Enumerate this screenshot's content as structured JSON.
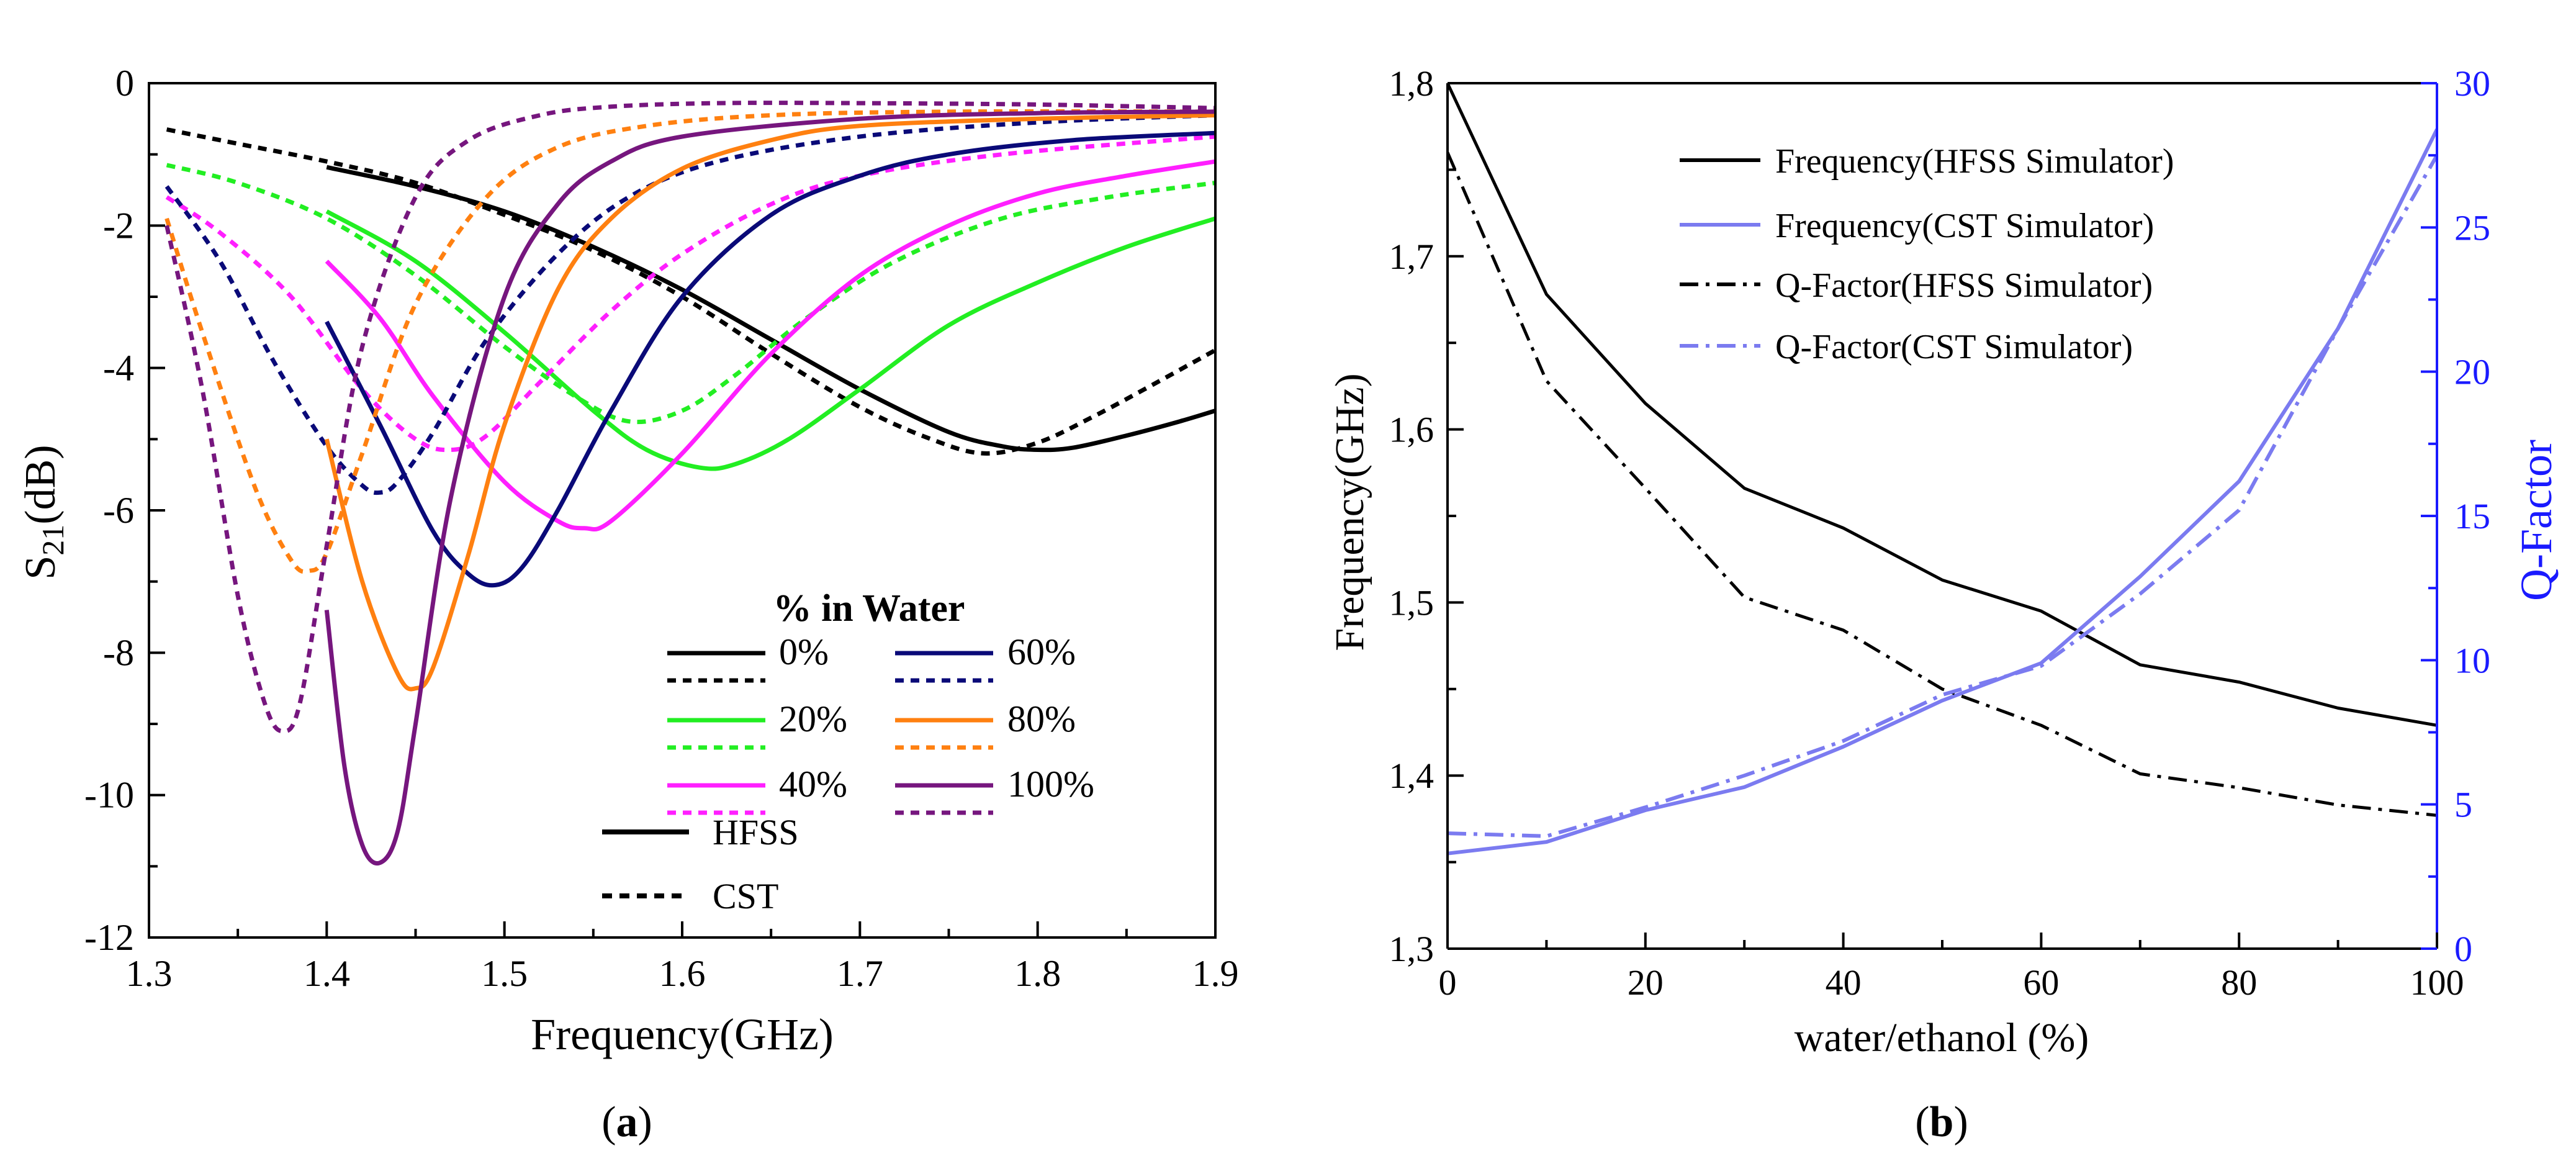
{
  "chart_data": [
    {
      "type": "line",
      "panel": "(a)",
      "panel_letter": "a",
      "xlabel": "Frequency(GHz)",
      "ylabel_main": "S",
      "ylabel_sub": "21",
      "ylabel_unit": "(dB)",
      "xlim": [
        1.3,
        1.9
      ],
      "ylim": [
        -12,
        0
      ],
      "x_ticks": [
        "1.3",
        "1.4",
        "1.5",
        "1.6",
        "1.7",
        "1.8",
        "1.9"
      ],
      "y_ticks": [
        "0",
        "-2",
        "-4",
        "-6",
        "-8",
        "-10",
        "-12"
      ],
      "legend_title": "% in Water",
      "legend_style_labels": [
        "HFSS",
        "CST"
      ],
      "series": [
        {
          "name": "0%",
          "sim": "HFSS",
          "color": "#000000",
          "x": [
            1.4,
            1.45,
            1.5,
            1.55,
            1.6,
            1.65,
            1.7,
            1.75,
            1.78,
            1.8,
            1.82,
            1.85,
            1.88,
            1.9
          ],
          "y": [
            -1.18,
            -1.45,
            -1.8,
            -2.3,
            -2.9,
            -3.6,
            -4.3,
            -4.9,
            -5.1,
            -5.15,
            -5.12,
            -4.95,
            -4.75,
            -4.6
          ]
        },
        {
          "name": "0%",
          "sim": "CST",
          "color": "#000000",
          "x": [
            1.31,
            1.35,
            1.4,
            1.45,
            1.5,
            1.55,
            1.6,
            1.65,
            1.7,
            1.74,
            1.77,
            1.8,
            1.83,
            1.86,
            1.9
          ],
          "y": [
            -0.65,
            -0.85,
            -1.1,
            -1.4,
            -1.85,
            -2.35,
            -3.0,
            -3.8,
            -4.55,
            -5.0,
            -5.2,
            -5.05,
            -4.7,
            -4.3,
            -3.75
          ]
        },
        {
          "name": "20%",
          "sim": "HFSS",
          "color": "#22ee22",
          "x": [
            1.4,
            1.45,
            1.5,
            1.55,
            1.58,
            1.61,
            1.63,
            1.66,
            1.7,
            1.75,
            1.8,
            1.85,
            1.9
          ],
          "y": [
            -1.8,
            -2.5,
            -3.5,
            -4.6,
            -5.15,
            -5.4,
            -5.35,
            -5.0,
            -4.3,
            -3.4,
            -2.8,
            -2.3,
            -1.9
          ]
        },
        {
          "name": "20%",
          "sim": "CST",
          "color": "#22ee22",
          "x": [
            1.31,
            1.35,
            1.4,
            1.45,
            1.5,
            1.54,
            1.57,
            1.6,
            1.63,
            1.67,
            1.72,
            1.78,
            1.84,
            1.9
          ],
          "y": [
            -1.15,
            -1.4,
            -1.9,
            -2.7,
            -3.7,
            -4.4,
            -4.75,
            -4.6,
            -4.1,
            -3.3,
            -2.5,
            -1.9,
            -1.6,
            -1.4
          ]
        },
        {
          "name": "40%",
          "sim": "HFSS",
          "color": "#ff1fff",
          "x": [
            1.4,
            1.43,
            1.46,
            1.5,
            1.53,
            1.545,
            1.56,
            1.6,
            1.65,
            1.7,
            1.75,
            1.8,
            1.85,
            1.9
          ],
          "y": [
            -2.5,
            -3.3,
            -4.4,
            -5.6,
            -6.15,
            -6.25,
            -6.15,
            -5.2,
            -3.8,
            -2.7,
            -2.0,
            -1.55,
            -1.3,
            -1.1
          ]
        },
        {
          "name": "40%",
          "sim": "CST",
          "color": "#ff1fff",
          "x": [
            1.31,
            1.34,
            1.38,
            1.42,
            1.45,
            1.47,
            1.49,
            1.52,
            1.56,
            1.6,
            1.65,
            1.7,
            1.78,
            1.9
          ],
          "y": [
            -1.6,
            -2.1,
            -3.0,
            -4.3,
            -5.0,
            -5.15,
            -4.95,
            -4.2,
            -3.2,
            -2.4,
            -1.7,
            -1.3,
            -1.0,
            -0.75
          ]
        },
        {
          "name": "60%",
          "sim": "HFSS",
          "color": "#0a0a78",
          "x": [
            1.4,
            1.43,
            1.46,
            1.48,
            1.495,
            1.51,
            1.53,
            1.56,
            1.6,
            1.65,
            1.7,
            1.75,
            1.82,
            1.9
          ],
          "y": [
            -3.35,
            -4.8,
            -6.3,
            -6.9,
            -7.05,
            -6.8,
            -6.0,
            -4.6,
            -3.0,
            -1.85,
            -1.3,
            -1.0,
            -0.8,
            -0.7
          ]
        },
        {
          "name": "60%",
          "sim": "CST",
          "color": "#0a0a78",
          "x": [
            1.31,
            1.34,
            1.37,
            1.4,
            1.42,
            1.43,
            1.44,
            1.46,
            1.49,
            1.53,
            1.57,
            1.62,
            1.7,
            1.8,
            1.9
          ],
          "y": [
            -1.45,
            -2.5,
            -3.9,
            -5.1,
            -5.65,
            -5.75,
            -5.6,
            -4.9,
            -3.6,
            -2.4,
            -1.6,
            -1.1,
            -0.75,
            -0.55,
            -0.45
          ]
        },
        {
          "name": "80%",
          "sim": "HFSS",
          "color": "#ff8010",
          "x": [
            1.4,
            1.42,
            1.44,
            1.45,
            1.46,
            1.48,
            1.5,
            1.53,
            1.56,
            1.6,
            1.65,
            1.7,
            1.8,
            1.9
          ],
          "y": [
            -5.0,
            -7.0,
            -8.3,
            -8.5,
            -8.2,
            -6.6,
            -4.8,
            -2.9,
            -1.9,
            -1.2,
            -0.8,
            -0.6,
            -0.5,
            -0.45
          ]
        },
        {
          "name": "80%",
          "sim": "CST",
          "color": "#ff8010",
          "x": [
            1.31,
            1.33,
            1.36,
            1.38,
            1.39,
            1.4,
            1.42,
            1.45,
            1.49,
            1.53,
            1.58,
            1.65,
            1.75,
            1.9
          ],
          "y": [
            -1.9,
            -3.5,
            -5.7,
            -6.7,
            -6.85,
            -6.6,
            -5.2,
            -3.1,
            -1.6,
            -0.9,
            -0.6,
            -0.45,
            -0.4,
            -0.4
          ]
        },
        {
          "name": "100%",
          "sim": "HFSS",
          "color": "#76167e",
          "x": [
            1.4,
            1.41,
            1.42,
            1.43,
            1.44,
            1.45,
            1.47,
            1.5,
            1.53,
            1.56,
            1.6,
            1.7,
            1.8,
            1.9
          ],
          "y": [
            -7.4,
            -9.6,
            -10.7,
            -10.95,
            -10.5,
            -9.0,
            -5.8,
            -3.0,
            -1.7,
            -1.1,
            -0.75,
            -0.5,
            -0.42,
            -0.4
          ]
        },
        {
          "name": "100%",
          "sim": "CST",
          "color": "#76167e",
          "x": [
            1.31,
            1.33,
            1.35,
            1.365,
            1.375,
            1.385,
            1.4,
            1.42,
            1.45,
            1.48,
            1.52,
            1.56,
            1.62,
            1.7,
            1.8,
            1.9
          ],
          "y": [
            -2.0,
            -4.3,
            -7.2,
            -8.7,
            -9.1,
            -8.7,
            -6.5,
            -3.7,
            -1.6,
            -0.8,
            -0.45,
            -0.33,
            -0.28,
            -0.28,
            -0.3,
            -0.35
          ]
        }
      ]
    },
    {
      "type": "line",
      "panel": "(b)",
      "panel_letter": "b",
      "xlabel": "water/ethanol (%)",
      "ylabel_left": "Frequency(GHz)",
      "ylabel_right": "Q-Factor",
      "xlim": [
        0,
        100
      ],
      "ylim_left": [
        1.3,
        1.8
      ],
      "ylim_right": [
        0,
        30
      ],
      "x_ticks": [
        "0",
        "20",
        "40",
        "60",
        "80",
        "100"
      ],
      "y_ticks_left": [
        "1,3",
        "1,4",
        "1,5",
        "1,6",
        "1,7",
        "1,8"
      ],
      "y_ticks_right": [
        "0",
        "5",
        "10",
        "15",
        "20",
        "25",
        "30"
      ],
      "right_axis_color": "#1a1aff",
      "x": [
        0,
        10,
        20,
        30,
        40,
        50,
        60,
        70,
        80,
        90,
        100
      ],
      "series": [
        {
          "name": "Frequency(HFSS Simulator)",
          "axis": "left",
          "style": "solid",
          "color": "#000000",
          "values": [
            1.8,
            1.678,
            1.615,
            1.566,
            1.543,
            1.513,
            1.495,
            1.464,
            1.454,
            1.439,
            1.429
          ]
        },
        {
          "name": "Frequency(CST Simulator)",
          "axis": "right",
          "style": "solid",
          "color": "#7b7bf0",
          "values": [
            3.3,
            3.7,
            4.8,
            5.6,
            7.0,
            8.6,
            9.9,
            12.9,
            16.2,
            21.5,
            28.4
          ]
        },
        {
          "name": " Q-Factor(HFSS Simulator)",
          "axis": "left",
          "style": "dashdot",
          "color": "#000000",
          "values": [
            1.76,
            1.628,
            1.566,
            1.503,
            1.484,
            1.45,
            1.429,
            1.401,
            1.393,
            1.383,
            1.377
          ]
        },
        {
          "name": "Q-Factor(CST Simulator)",
          "axis": "right",
          "style": "dashdot",
          "color": "#7b7bf0",
          "values": [
            4.0,
            3.9,
            4.9,
            6.0,
            7.2,
            8.8,
            9.8,
            12.3,
            15.2,
            21.5,
            27.5
          ]
        }
      ]
    }
  ]
}
